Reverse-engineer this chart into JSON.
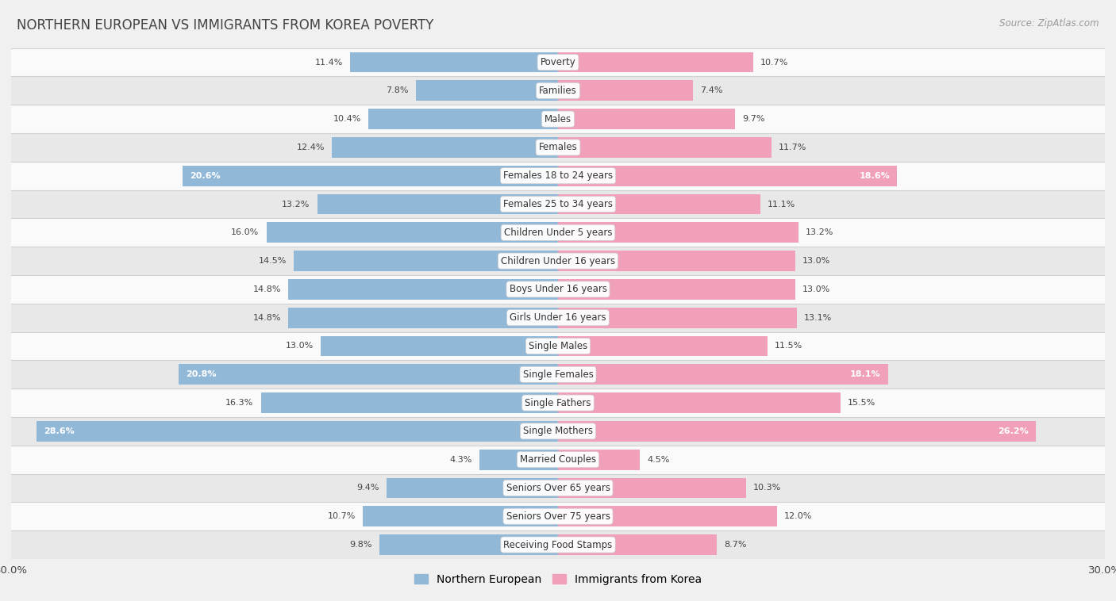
{
  "title": "NORTHERN EUROPEAN VS IMMIGRANTS FROM KOREA POVERTY",
  "source": "Source: ZipAtlas.com",
  "categories": [
    "Poverty",
    "Families",
    "Males",
    "Females",
    "Females 18 to 24 years",
    "Females 25 to 34 years",
    "Children Under 5 years",
    "Children Under 16 years",
    "Boys Under 16 years",
    "Girls Under 16 years",
    "Single Males",
    "Single Females",
    "Single Fathers",
    "Single Mothers",
    "Married Couples",
    "Seniors Over 65 years",
    "Seniors Over 75 years",
    "Receiving Food Stamps"
  ],
  "northern_european": [
    11.4,
    7.8,
    10.4,
    12.4,
    20.6,
    13.2,
    16.0,
    14.5,
    14.8,
    14.8,
    13.0,
    20.8,
    16.3,
    28.6,
    4.3,
    9.4,
    10.7,
    9.8
  ],
  "immigrants_korea": [
    10.7,
    7.4,
    9.7,
    11.7,
    18.6,
    11.1,
    13.2,
    13.0,
    13.0,
    13.1,
    11.5,
    18.1,
    15.5,
    26.2,
    4.5,
    10.3,
    12.0,
    8.7
  ],
  "color_northern": "#92b8d8",
  "color_korea": "#f0a0b8",
  "background_color": "#f0f0f0",
  "row_light_color": "#fafafa",
  "row_dark_color": "#e8e8e8",
  "separator_color": "#d0d0d0",
  "xlim": 30.0,
  "legend_label_north": "Northern European",
  "legend_label_korea": "Immigrants from Korea"
}
